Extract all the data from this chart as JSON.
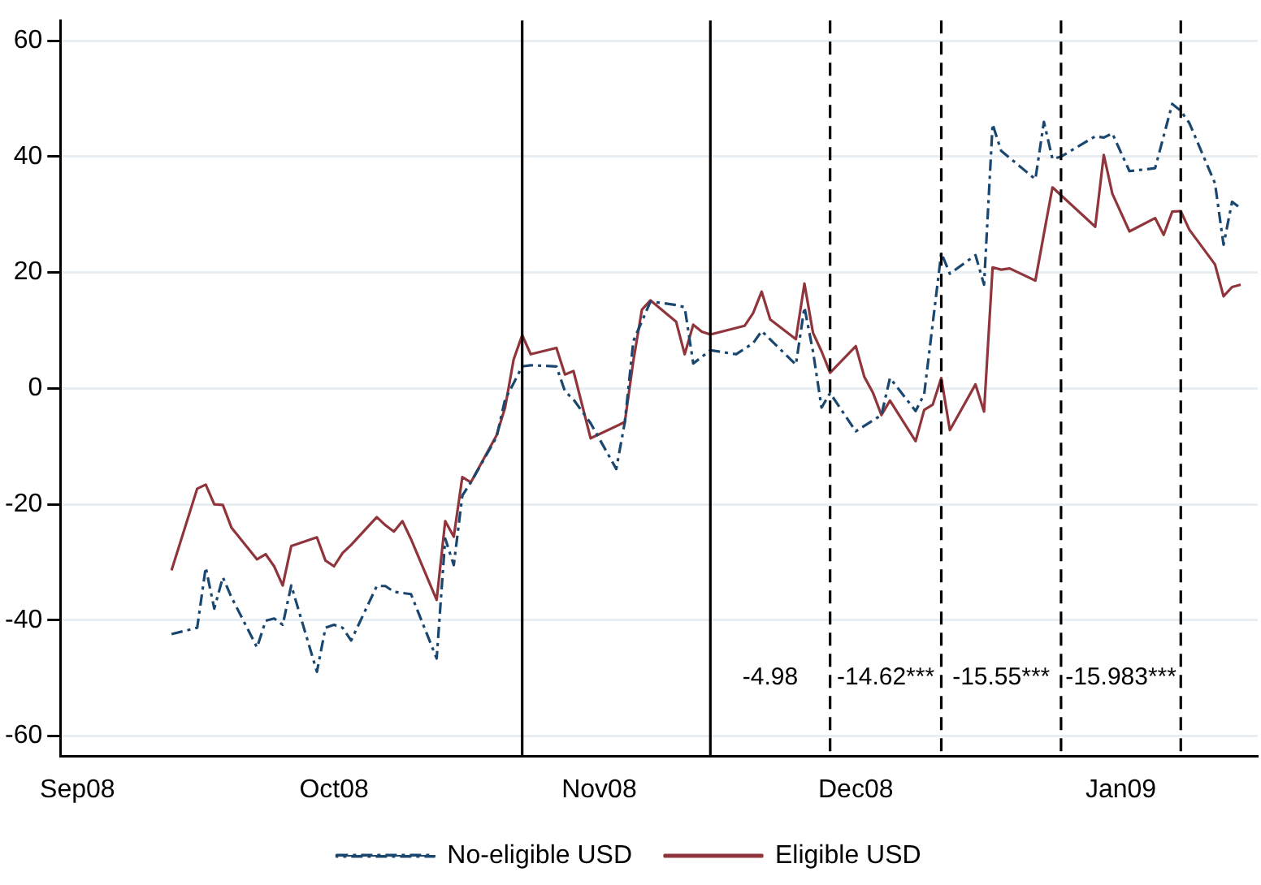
{
  "chart_data": {
    "type": "line",
    "xlim": [
      "2008-08-30",
      "2009-01-17"
    ],
    "xticks": [
      {
        "value": "2008-09-01",
        "label": "Sep08"
      },
      {
        "value": "2008-10-01",
        "label": "Oct08"
      },
      {
        "value": "2008-11-01",
        "label": "Nov08"
      },
      {
        "value": "2008-12-01",
        "label": "Dec08"
      },
      {
        "value": "2009-01-01",
        "label": "Jan09"
      }
    ],
    "ylim": [
      -63.5,
      63.5
    ],
    "yticks": [
      -60,
      -40,
      -20,
      0,
      20,
      40,
      60
    ],
    "grid": "y",
    "legend": "bottom",
    "series": [
      {
        "name": "No-eligible USD",
        "color": "#1a476f",
        "line_style": "dashed",
        "x": [
          "2008-09-12",
          "2008-09-15",
          "2008-09-16",
          "2008-09-17",
          "2008-09-18",
          "2008-09-19",
          "2008-09-22",
          "2008-09-23",
          "2008-09-24",
          "2008-09-25",
          "2008-09-26",
          "2008-09-29",
          "2008-09-30",
          "2008-10-01",
          "2008-10-02",
          "2008-10-03",
          "2008-10-06",
          "2008-10-07",
          "2008-10-08",
          "2008-10-10",
          "2008-10-13",
          "2008-10-14",
          "2008-10-15",
          "2008-10-16",
          "2008-10-17",
          "2008-10-20",
          "2008-10-21",
          "2008-10-22",
          "2008-10-23",
          "2008-10-24",
          "2008-10-27",
          "2008-10-28",
          "2008-10-29",
          "2008-10-31",
          "2008-11-03",
          "2008-11-04",
          "2008-11-05",
          "2008-11-07",
          "2008-11-10",
          "2008-11-11",
          "2008-11-12",
          "2008-11-14",
          "2008-11-17",
          "2008-11-19",
          "2008-11-20",
          "2008-11-24",
          "2008-11-25",
          "2008-11-26",
          "2008-11-27",
          "2008-11-28",
          "2008-12-01",
          "2008-12-04",
          "2008-12-05",
          "2008-12-08",
          "2008-12-09",
          "2008-12-11",
          "2008-12-12",
          "2008-12-15",
          "2008-12-16",
          "2008-12-17",
          "2008-12-18",
          "2008-12-22",
          "2008-12-23",
          "2008-12-24",
          "2008-12-25",
          "2008-12-29",
          "2008-12-30",
          "2008-12-31",
          "2009-01-02",
          "2009-01-05",
          "2009-01-07",
          "2009-01-08",
          "2009-01-09",
          "2009-01-12",
          "2009-01-13",
          "2009-01-14",
          "2009-01-15"
        ],
        "values": [
          -42.4,
          -41.3,
          -30.9,
          -38.0,
          -32.6,
          -36.0,
          -44.7,
          -40.1,
          -39.7,
          -40.8,
          -34.0,
          -48.9,
          -41.3,
          -40.8,
          -41.3,
          -43.5,
          -34.1,
          -34.1,
          -35.1,
          -35.5,
          -46.6,
          -25.9,
          -30.5,
          -18.5,
          -16.2,
          -8.4,
          -1.9,
          0.9,
          3.8,
          4.0,
          3.8,
          -0.5,
          -1.9,
          -6.0,
          -13.9,
          -5.8,
          8.2,
          15.0,
          14.4,
          14.0,
          4.3,
          6.6,
          5.9,
          7.8,
          9.9,
          4.1,
          14.0,
          6.4,
          -3.3,
          -0.8,
          -7.4,
          -4.6,
          1.8,
          -3.9,
          -1.0,
          23.4,
          19.8,
          23.0,
          17.9,
          45.6,
          41.0,
          36.1,
          46.0,
          39.6,
          40.0,
          43.5,
          43.3,
          44.0,
          37.5,
          38.0,
          49.1,
          47.9,
          45.8,
          35.4,
          24.8,
          32.2,
          31.1
        ]
      },
      {
        "name": "Eligible USD",
        "color": "#90353b",
        "line_style": "solid",
        "x": [
          "2008-09-12",
          "2008-09-15",
          "2008-09-16",
          "2008-09-17",
          "2008-09-18",
          "2008-09-19",
          "2008-09-22",
          "2008-09-23",
          "2008-09-24",
          "2008-09-25",
          "2008-09-26",
          "2008-09-29",
          "2008-09-30",
          "2008-10-01",
          "2008-10-02",
          "2008-10-03",
          "2008-10-06",
          "2008-10-07",
          "2008-10-08",
          "2008-10-09",
          "2008-10-10",
          "2008-10-13",
          "2008-10-14",
          "2008-10-15",
          "2008-10-16",
          "2008-10-17",
          "2008-10-20",
          "2008-10-21",
          "2008-10-22",
          "2008-10-23",
          "2008-10-24",
          "2008-10-27",
          "2008-10-28",
          "2008-10-29",
          "2008-10-31",
          "2008-11-04",
          "2008-11-05",
          "2008-11-06",
          "2008-11-07",
          "2008-11-10",
          "2008-11-11",
          "2008-11-12",
          "2008-11-13",
          "2008-11-14",
          "2008-11-18",
          "2008-11-19",
          "2008-11-20",
          "2008-11-21",
          "2008-11-24",
          "2008-11-25",
          "2008-11-26",
          "2008-11-27",
          "2008-11-28",
          "2008-12-01",
          "2008-12-02",
          "2008-12-03",
          "2008-12-04",
          "2008-12-05",
          "2008-12-08",
          "2008-12-09",
          "2008-12-10",
          "2008-12-11",
          "2008-12-12",
          "2008-12-15",
          "2008-12-16",
          "2008-12-17",
          "2008-12-18",
          "2008-12-19",
          "2008-12-22",
          "2008-12-23",
          "2008-12-24",
          "2008-12-29",
          "2008-12-30",
          "2008-12-31",
          "2009-01-02",
          "2009-01-05",
          "2009-01-06",
          "2009-01-07",
          "2009-01-08",
          "2009-01-09",
          "2009-01-12",
          "2009-01-13",
          "2009-01-14",
          "2009-01-15"
        ],
        "values": [
          -31.4,
          -17.3,
          -16.6,
          -20.0,
          -20.1,
          -24.0,
          -29.5,
          -28.6,
          -30.7,
          -34.0,
          -27.2,
          -25.7,
          -29.7,
          -30.7,
          -28.4,
          -27.0,
          -22.2,
          -23.6,
          -24.7,
          -22.9,
          -26.0,
          -36.5,
          -22.9,
          -25.6,
          -15.3,
          -16.2,
          -8.1,
          -3.3,
          5.0,
          9.2,
          5.9,
          7.0,
          2.4,
          3.0,
          -8.6,
          -5.8,
          4.8,
          13.6,
          15.2,
          11.5,
          5.9,
          11.0,
          9.8,
          9.3,
          10.8,
          13.0,
          16.7,
          11.9,
          8.5,
          18.1,
          9.6,
          6.4,
          2.7,
          7.3,
          2.0,
          -0.7,
          -4.6,
          -2.1,
          -9.1,
          -3.7,
          -2.8,
          1.8,
          -7.2,
          0.7,
          -4.0,
          20.9,
          20.5,
          20.7,
          18.6,
          26.7,
          34.7,
          27.9,
          40.3,
          33.6,
          27.1,
          29.4,
          26.5,
          30.5,
          30.6,
          27.4,
          21.4,
          15.9,
          17.5,
          17.9
        ]
      }
    ],
    "ref_lines": [
      {
        "axis": "x",
        "value": "2008-10-23",
        "line_style": "solid"
      },
      {
        "axis": "x",
        "value": "2008-11-14",
        "line_style": "solid"
      },
      {
        "axis": "x",
        "value": "2008-11-28",
        "line_style": "dashed"
      },
      {
        "axis": "x",
        "value": "2008-12-11",
        "line_style": "dashed"
      },
      {
        "axis": "x",
        "value": "2008-12-25",
        "line_style": "dashed"
      },
      {
        "axis": "x",
        "value": "2009-01-08",
        "line_style": "dashed"
      }
    ],
    "annotations": [
      "-4.98",
      "-14.62***",
      "-15.55***",
      "-15.983***"
    ]
  }
}
